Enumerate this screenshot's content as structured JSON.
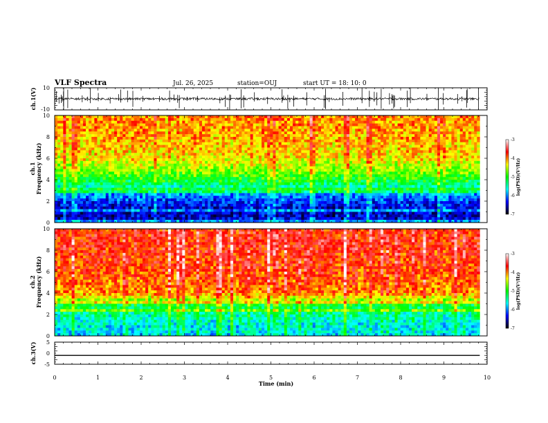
{
  "header": {
    "title": "VLF Spectra",
    "date": "Jul. 26, 2025",
    "station": "station=OUJ",
    "start": "start UT = 18: 10: 0"
  },
  "chart_data": [
    {
      "type": "line",
      "panel": "ch1-waveform",
      "ylabel": "ch.1(V)",
      "ylim": [
        -10,
        10
      ],
      "yticks": [
        "10",
        "-10"
      ],
      "xlim": [
        0,
        10
      ],
      "baseline": 0,
      "noise_amplitude": 2
    },
    {
      "type": "heatmap",
      "panel": "ch1-spectrogram",
      "ylabel": "ch.1\nFrequency (kHz)",
      "ylim": [
        0,
        10
      ],
      "yticks": [
        "0",
        "2",
        "4",
        "6",
        "8",
        "10"
      ],
      "xlim": [
        0,
        10
      ],
      "data_end_min": 9.83,
      "profile_khz": [
        0,
        1,
        2,
        3,
        3.5,
        4,
        5,
        6,
        8,
        10
      ],
      "profile_level": [
        -6.3,
        -6.4,
        -6.1,
        -5.6,
        -5.2,
        -4.9,
        -4.5,
        -4.2,
        -4.0,
        -3.9
      ]
    },
    {
      "type": "heatmap",
      "panel": "ch2-spectrogram",
      "ylabel": "ch.2\nFrequency (kHz)",
      "ylim": [
        0,
        10
      ],
      "yticks": [
        "0",
        "2",
        "4",
        "6",
        "8",
        "10"
      ],
      "xlim": [
        0,
        10
      ],
      "data_end_min": 9.83,
      "profile_khz": [
        0,
        1,
        2,
        3,
        3.5,
        4,
        6,
        8,
        10
      ],
      "profile_level": [
        -5.6,
        -5.5,
        -5.3,
        -4.9,
        -4.3,
        -3.9,
        -3.7,
        -3.6,
        -3.6
      ]
    },
    {
      "type": "line",
      "panel": "ch3-waveform",
      "ylabel": "ch.3(V)",
      "ylim": [
        -5,
        5
      ],
      "yticks": [
        "5",
        "0",
        "-5"
      ],
      "xlim": [
        0,
        10
      ],
      "values": [
        -1,
        -1
      ]
    }
  ],
  "xaxis": {
    "label": "Time (min)",
    "ticks": [
      "0",
      "1",
      "2",
      "3",
      "4",
      "5",
      "6",
      "7",
      "8",
      "9",
      "10"
    ]
  },
  "colorbar": {
    "label": "log(PSD)(V²/Hz)",
    "ticks": [
      "-3",
      "-4",
      "-5",
      "-6",
      "-7"
    ],
    "range": [
      -7,
      -3
    ],
    "colors": [
      "#000000",
      "#0000ff",
      "#00ffff",
      "#00ff00",
      "#ffff00",
      "#ff0000",
      "#ffffff"
    ]
  }
}
